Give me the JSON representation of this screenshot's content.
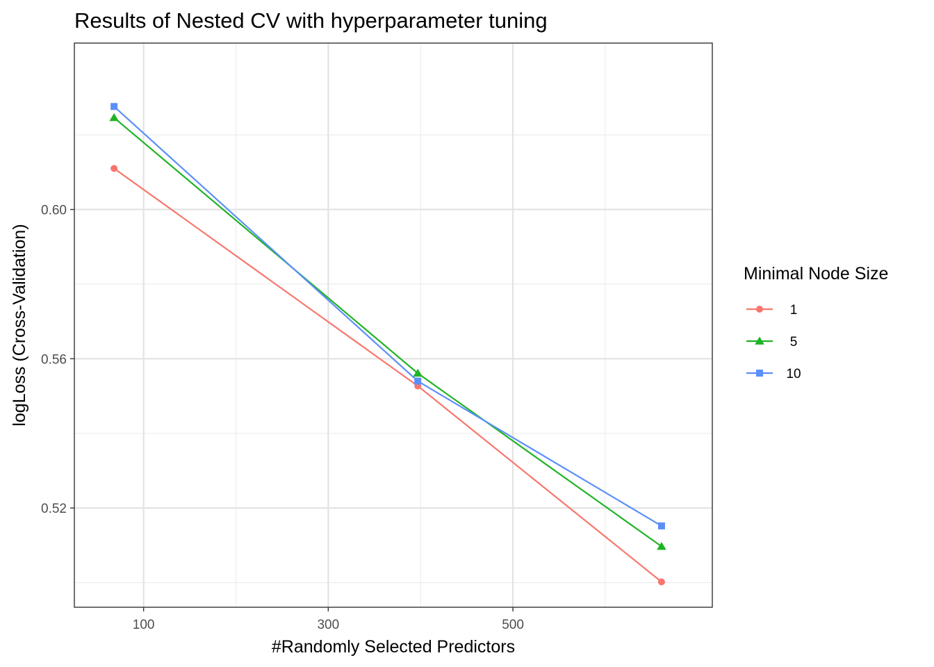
{
  "chart_data": {
    "type": "line",
    "title": "Results of Nested CV with hyperparameter tuning",
    "xlabel": "#Randomly Selected Predictors",
    "ylabel": "logLoss (Cross-Validation)",
    "x": [
      68,
      397,
      661
    ],
    "xlim": [
      25,
      716
    ],
    "ylim": [
      0.4934,
      0.6446
    ],
    "x_ticks": [
      100,
      300,
      500
    ],
    "x_tick_labels": [
      "100",
      "300",
      "500"
    ],
    "x_minor_ticks": [
      200,
      400,
      600
    ],
    "y_ticks": [
      0.52,
      0.56,
      0.6
    ],
    "y_tick_labels": [
      "0.52",
      "0.56",
      "0.60"
    ],
    "y_minor_ticks": [
      0.5,
      0.54,
      0.58,
      0.62
    ],
    "grid": true,
    "legend": {
      "title": "Minimal Node Size",
      "placement": "right"
    },
    "series": [
      {
        "name": "1",
        "color": "#F8766D",
        "marker": "circle",
        "values": [
          0.611,
          0.5527,
          0.5002
        ]
      },
      {
        "name": "5",
        "color": "#1FB324",
        "marker": "triangle",
        "values": [
          0.6246,
          0.5561,
          0.5097
        ]
      },
      {
        "name": "10",
        "color": "#5B8FF9",
        "marker": "square",
        "values": [
          0.6276,
          0.554,
          0.5152
        ]
      }
    ]
  }
}
